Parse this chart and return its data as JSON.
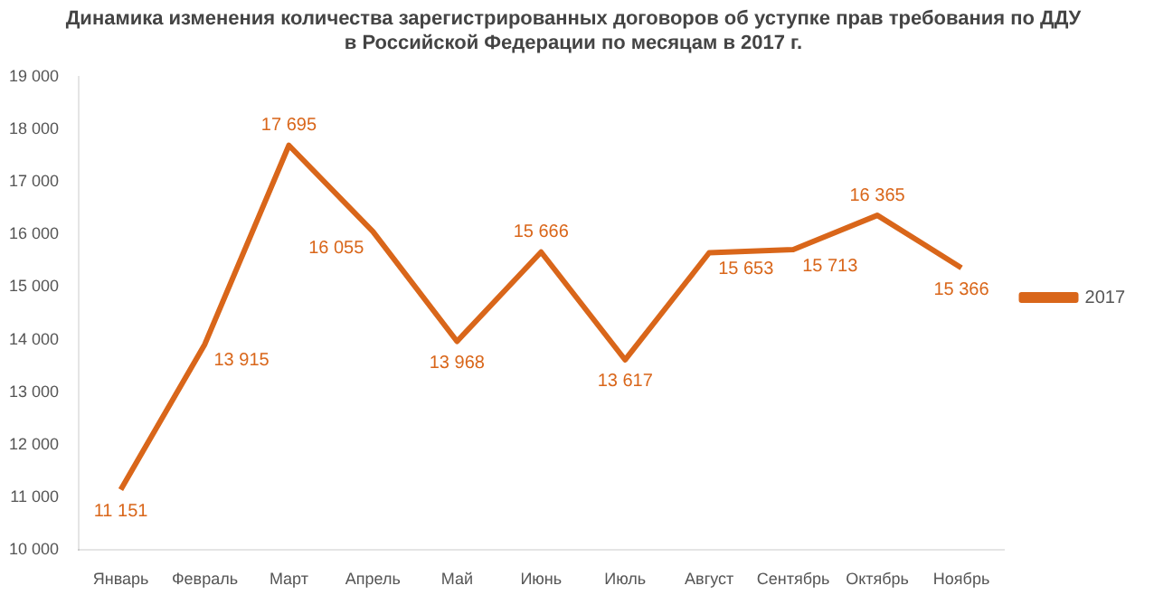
{
  "chart_data": {
    "type": "line",
    "title": "Динамика изменения количества зарегистрированных договоров об уступке прав требования по ДДУ\nв Российской Федерации по месяцам в 2017 г.",
    "categories": [
      "Январь",
      "Февраль",
      "Март",
      "Апрель",
      "Май",
      "Июнь",
      "Июль",
      "Август",
      "Сентябрь",
      "Октябрь",
      "Ноябрь"
    ],
    "series": [
      {
        "name": "2017",
        "color": "#d9661a",
        "values": [
          11151,
          13915,
          17695,
          16055,
          13968,
          15666,
          13617,
          15653,
          15713,
          16365,
          15366
        ],
        "value_labels": [
          "11 151",
          "13 915",
          "17 695",
          "16 055",
          "13 968",
          "15 666",
          "13 617",
          "15 653",
          "15 713",
          "16 365",
          "15 366"
        ]
      }
    ],
    "ylim": [
      10000,
      19000
    ],
    "yticks": [
      {
        "value": 10000,
        "label": "10 000"
      },
      {
        "value": 11000,
        "label": "11 000"
      },
      {
        "value": 12000,
        "label": "12 000"
      },
      {
        "value": 13000,
        "label": "13 000"
      },
      {
        "value": 14000,
        "label": "14 000"
      },
      {
        "value": 15000,
        "label": "15 000"
      },
      {
        "value": 16000,
        "label": "16 000"
      },
      {
        "value": 17000,
        "label": "17 000"
      },
      {
        "value": 18000,
        "label": "18 000"
      },
      {
        "value": 19000,
        "label": "19 000"
      }
    ],
    "grid": false,
    "legend": "right",
    "marker": "none",
    "line_style": "solid"
  }
}
